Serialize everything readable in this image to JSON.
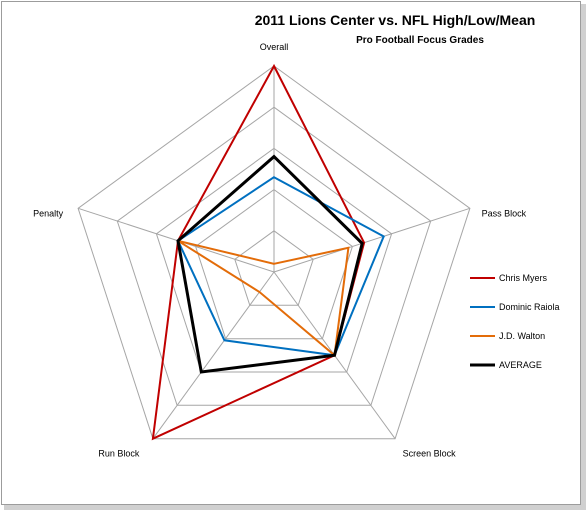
{
  "chart_data": {
    "type": "radar",
    "title": "2011 Lions Center vs. NFL High/Low/Mean",
    "subtitle": "Pro Football Focus  Grades",
    "axes": [
      "Overall",
      "Pass Block",
      "Screen Block",
      "Run Block",
      "Penalty"
    ],
    "rlim": [
      0,
      5
    ],
    "grid": true,
    "legend_position": "right",
    "series": [
      {
        "name": "Chris Myers",
        "color": "#c00000",
        "values": [
          5.0,
          2.3,
          2.5,
          5.0,
          2.45
        ]
      },
      {
        "name": "Dominic Raiola",
        "color": "#0070c0",
        "values": [
          2.3,
          2.8,
          2.5,
          2.05,
          2.45
        ]
      },
      {
        "name": "J.D. Walton",
        "color": "#e36c09",
        "values": [
          0.2,
          1.9,
          2.5,
          0.6,
          2.45
        ]
      },
      {
        "name": "AVERAGE",
        "color": "#000000",
        "values": [
          2.8,
          2.25,
          2.5,
          3.0,
          2.45
        ]
      }
    ]
  }
}
